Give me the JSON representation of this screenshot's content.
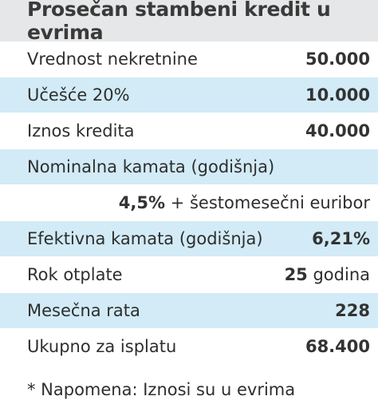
{
  "title": "Prosečan stambeni kredit u evrima",
  "rows": [
    {
      "label": "Vrednost nekretnine",
      "value": "50.000"
    },
    {
      "label": "Učešće 20%",
      "value": "10.000"
    },
    {
      "label": "Iznos kredita",
      "value": "40.000"
    },
    {
      "label": "Nominalna kamata (godišnja)",
      "value": ""
    },
    {
      "label": "",
      "value_bold": "4,5%",
      "value_rest": " + šestomesečni euribor"
    },
    {
      "label": "Efektivna kamata (godišnja)",
      "value": "6,21%"
    },
    {
      "label": "Rok otplate",
      "value_bold": "25",
      "value_rest": " godina"
    },
    {
      "label": "Mesečna rata",
      "value": "228"
    },
    {
      "label": "Ukupno za isplatu",
      "value": "68.400"
    }
  ],
  "note": "* Napomena: Iznosi su u evrima",
  "colors": {
    "header_bg": "#e6e7e8",
    "stripe_bg": "#d2ebf6",
    "text": "#2e2e2e"
  }
}
